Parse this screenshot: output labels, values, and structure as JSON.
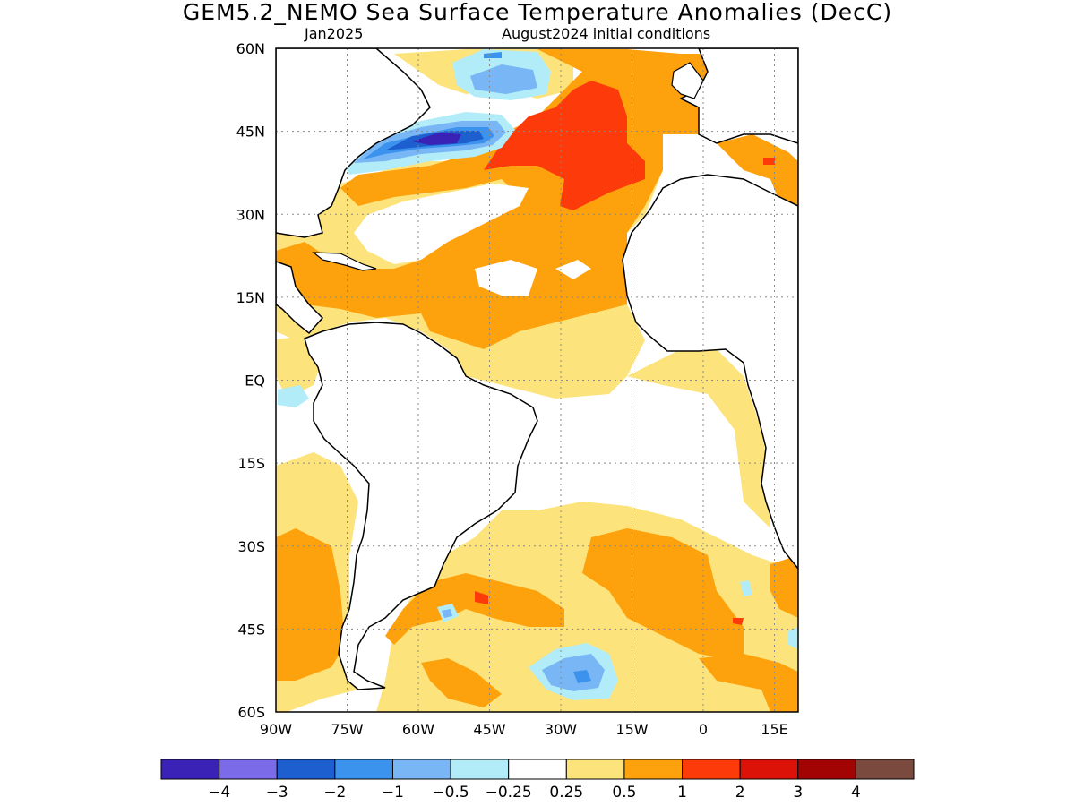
{
  "title": "GEM5.2_NEMO Sea Surface Temperature Anomalies (DecC)",
  "subtitle_left": "Jan2025",
  "subtitle_right": "August2024 initial conditions",
  "map": {
    "lon_range": [
      -90,
      20
    ],
    "lat_range": [
      -60,
      60
    ],
    "lat_ticks": [
      {
        "value": 60,
        "label": "60N"
      },
      {
        "value": 45,
        "label": "45N"
      },
      {
        "value": 30,
        "label": "30N"
      },
      {
        "value": 15,
        "label": "15N"
      },
      {
        "value": 0,
        "label": "EQ"
      },
      {
        "value": -15,
        "label": "15S"
      },
      {
        "value": -30,
        "label": "30S"
      },
      {
        "value": -45,
        "label": "45S"
      },
      {
        "value": -60,
        "label": "60S"
      }
    ],
    "lon_ticks": [
      {
        "value": -90,
        "label": "90W"
      },
      {
        "value": -75,
        "label": "75W"
      },
      {
        "value": -60,
        "label": "60W"
      },
      {
        "value": -45,
        "label": "45W"
      },
      {
        "value": -30,
        "label": "30W"
      },
      {
        "value": -15,
        "label": "15W"
      },
      {
        "value": 0,
        "label": "0"
      },
      {
        "value": 15,
        "label": "15E"
      }
    ],
    "grid": "dotted"
  },
  "colorbar": {
    "colors": [
      "#3b22b6",
      "#7b6be8",
      "#1e5fd0",
      "#3c93ee",
      "#78b6f5",
      "#b1ecf8",
      "#ffffff",
      "#fde37c",
      "#fda20c",
      "#fd3a0a",
      "#dc1208",
      "#a20404",
      "#7a4a3e"
    ],
    "labels": [
      "−4",
      "−3",
      "−2",
      "−1",
      "−0.5",
      "−0.25",
      "0.25",
      "0.5",
      "1",
      "2",
      "3",
      "4"
    ]
  }
}
